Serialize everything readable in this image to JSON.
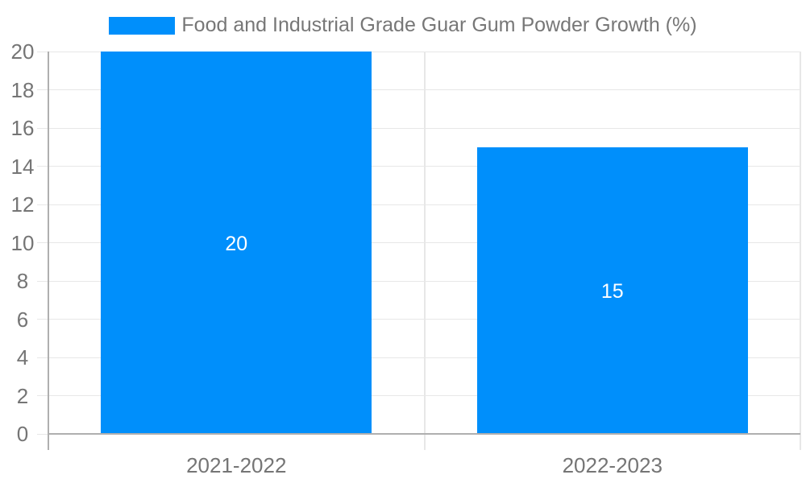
{
  "chart_data": {
    "type": "bar",
    "title": "",
    "legend": {
      "label": "Food and Industrial Grade Guar Gum Powder Growth (%)",
      "position": "top"
    },
    "categories": [
      "2021-2022",
      "2022-2023"
    ],
    "series": [
      {
        "name": "Food and Industrial Grade Guar Gum Powder Growth (%)",
        "values": [
          20,
          15
        ]
      }
    ],
    "data_labels": [
      "20",
      "15"
    ],
    "xlabel": "",
    "ylabel": "",
    "ylim": [
      0,
      20
    ],
    "yticks": [
      0,
      2,
      4,
      6,
      8,
      10,
      12,
      14,
      16,
      18,
      20
    ],
    "grid": true,
    "colors": {
      "bar": "#008FFB",
      "data_label": "#FFFFFF",
      "grid_line": "#E7E7E7",
      "axis_line": "#AFAFAF",
      "tick_label": "#757575",
      "legend_text": "#777777",
      "background": "#FFFFFF"
    }
  }
}
